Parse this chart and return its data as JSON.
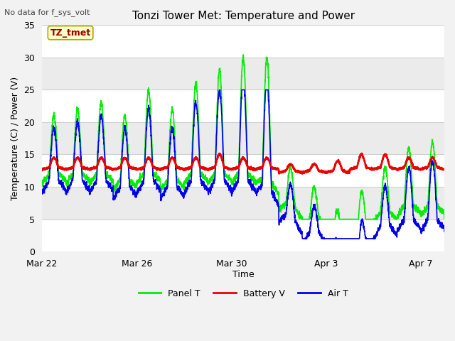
{
  "title": "Tonzi Tower Met: Temperature and Power",
  "top_left_text": "No data for f_sys_volt",
  "xlabel": "Time",
  "ylabel": "Temperature (C) / Power (V)",
  "ylim": [
    0,
    35
  ],
  "yticks": [
    0,
    5,
    10,
    15,
    20,
    25,
    30,
    35
  ],
  "xlim_days": [
    0,
    17.0
  ],
  "x_tick_labels": [
    "Mar 22",
    "Mar 26",
    "Mar 30",
    "Apr 3",
    "Apr 7"
  ],
  "x_tick_positions": [
    0,
    4,
    8,
    12,
    16
  ],
  "legend_labels": [
    "Panel T",
    "Battery V",
    "Air T"
  ],
  "line_colors": [
    "#00EE00",
    "#EE0000",
    "#0000EE"
  ],
  "plot_bg_color": "#EBEBEB",
  "grid_stripe_color": "#FFFFFF",
  "grid_line_color": "#D0D0D0",
  "annotation_text": "TZ_tmet",
  "annotation_text_color": "#990000",
  "annotation_bg": "#FFFFCC",
  "annotation_border": "#AAAA00",
  "fig_bg": "#F2F2F2",
  "title_fontsize": 11,
  "tick_fontsize": 9,
  "label_fontsize": 9,
  "legend_fontsize": 9
}
